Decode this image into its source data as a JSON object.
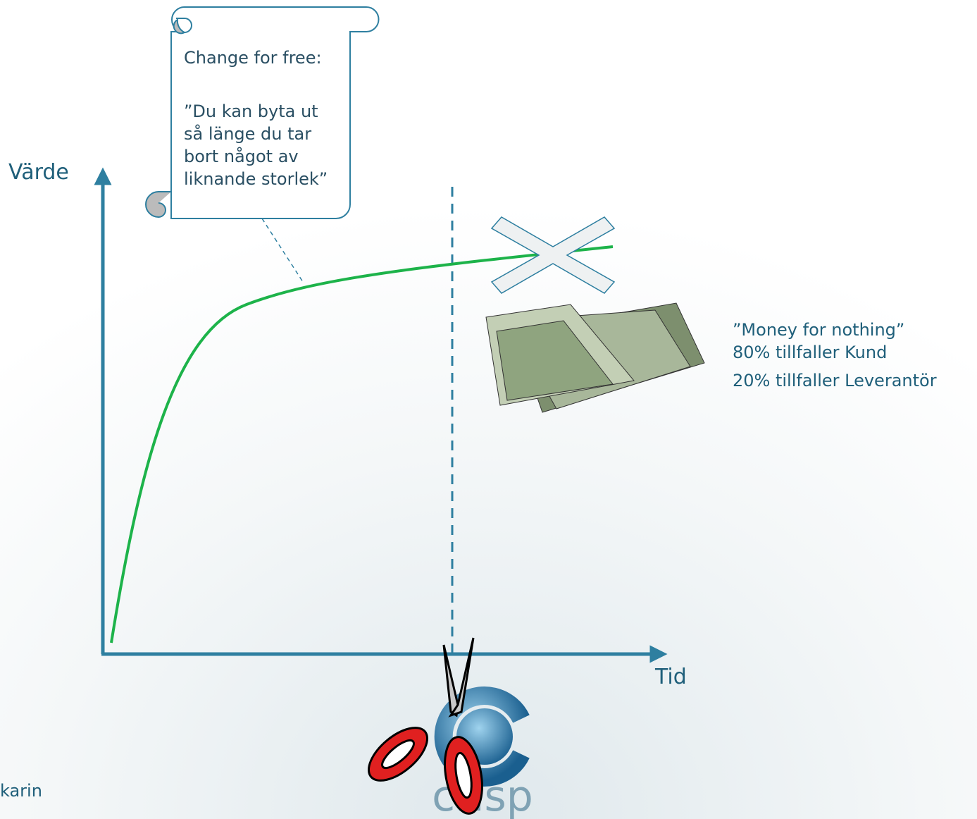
{
  "axes": {
    "y_label": "Värde",
    "x_label": "Tid"
  },
  "scroll": {
    "title": "Change for free:",
    "lines": [
      "”Du kan byta ut",
      "så länge du tar",
      "bort något av",
      "liknande storlek”"
    ]
  },
  "money": {
    "lines": [
      "”Money for nothing”",
      "80% tillfaller Kund",
      "20% tillfaller Leverantör"
    ]
  },
  "footer": {
    "author": "karin",
    "logo": "crisp"
  }
}
